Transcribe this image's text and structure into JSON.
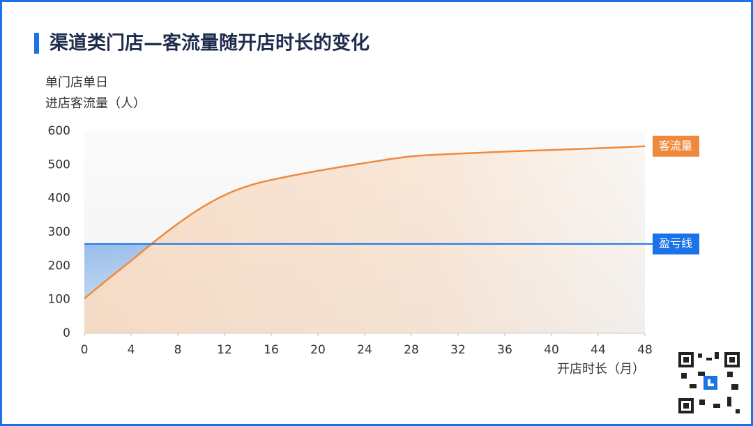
{
  "chart_data": {
    "type": "line",
    "title": "渠道类门店—客流量随开店时长的变化",
    "ylabel": [
      "单门店单日",
      "进店客流量（人）"
    ],
    "xlabel": "开店时长（月）",
    "x": [
      0,
      2,
      4,
      6,
      8,
      10,
      12,
      14,
      16,
      20,
      24,
      28,
      32,
      36,
      40,
      44,
      48
    ],
    "series": [
      {
        "name": "客流量",
        "color": "#ee8a3e",
        "values": [
          103,
          160,
          215,
          272,
          325,
          372,
          410,
          437,
          455,
          482,
          505,
          525,
          533,
          539,
          544,
          549,
          555
        ]
      }
    ],
    "reference_line": {
      "name": "盈亏线",
      "value": 265,
      "color": "#1a73e8"
    },
    "xlim": [
      0,
      48
    ],
    "xticks": [
      0,
      4,
      8,
      12,
      16,
      20,
      24,
      28,
      32,
      36,
      40,
      44,
      48
    ],
    "ylim": [
      0,
      600
    ],
    "yticks": [
      0,
      100,
      200,
      300,
      400,
      500,
      600
    ]
  }
}
